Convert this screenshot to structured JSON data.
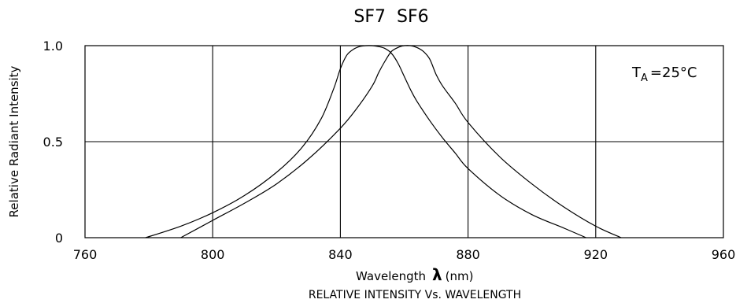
{
  "chart_data": {
    "type": "line",
    "title": "SF7  SF6",
    "xlabel": "Wavelength",
    "xlabel_symbol": "λ",
    "xlabel_unit": "(nm)",
    "ylabel": "Relative Radiant Intensity",
    "caption": "RELATIVE INTENSITY Vs. WAVELENGTH",
    "annotation": {
      "main": "T",
      "sub": "A",
      "rest": "=25°C"
    },
    "xlim": [
      760,
      960
    ],
    "ylim": [
      0,
      1.0
    ],
    "x_ticks": [
      760,
      800,
      840,
      880,
      920,
      960
    ],
    "x_tick_labels": [
      "760",
      "800",
      "840",
      "880",
      "920",
      "960"
    ],
    "y_ticks": [
      0,
      0.5,
      1.0
    ],
    "y_tick_labels": [
      "0",
      "0.5",
      "1.0"
    ],
    "grid": true,
    "series": [
      {
        "x": [
          779,
          790,
          800,
          810,
          820,
          828,
          834,
          838,
          840,
          842,
          844,
          846,
          848,
          850,
          852,
          854,
          856,
          858,
          860,
          862,
          864,
          868,
          872,
          876,
          880,
          890,
          900,
          910,
          917
        ],
        "y": [
          0,
          0.06,
          0.13,
          0.22,
          0.34,
          0.47,
          0.62,
          0.78,
          0.88,
          0.95,
          0.98,
          0.995,
          1.0,
          1.0,
          0.995,
          0.985,
          0.96,
          0.91,
          0.84,
          0.77,
          0.71,
          0.61,
          0.52,
          0.44,
          0.36,
          0.22,
          0.12,
          0.05,
          0
        ]
      },
      {
        "x": [
          790,
          800,
          810,
          820,
          830,
          840,
          845,
          850,
          852,
          854,
          856,
          858,
          860,
          862,
          864,
          866,
          868,
          870,
          872,
          876,
          880,
          890,
          900,
          910,
          920,
          928
        ],
        "y": [
          0,
          0.09,
          0.18,
          0.28,
          0.41,
          0.57,
          0.67,
          0.79,
          0.86,
          0.92,
          0.97,
          0.99,
          1.0,
          1.0,
          0.99,
          0.97,
          0.93,
          0.85,
          0.79,
          0.7,
          0.6,
          0.42,
          0.28,
          0.16,
          0.06,
          0
        ]
      }
    ],
    "reference_lines": {
      "y": [
        0.5
      ]
    }
  }
}
